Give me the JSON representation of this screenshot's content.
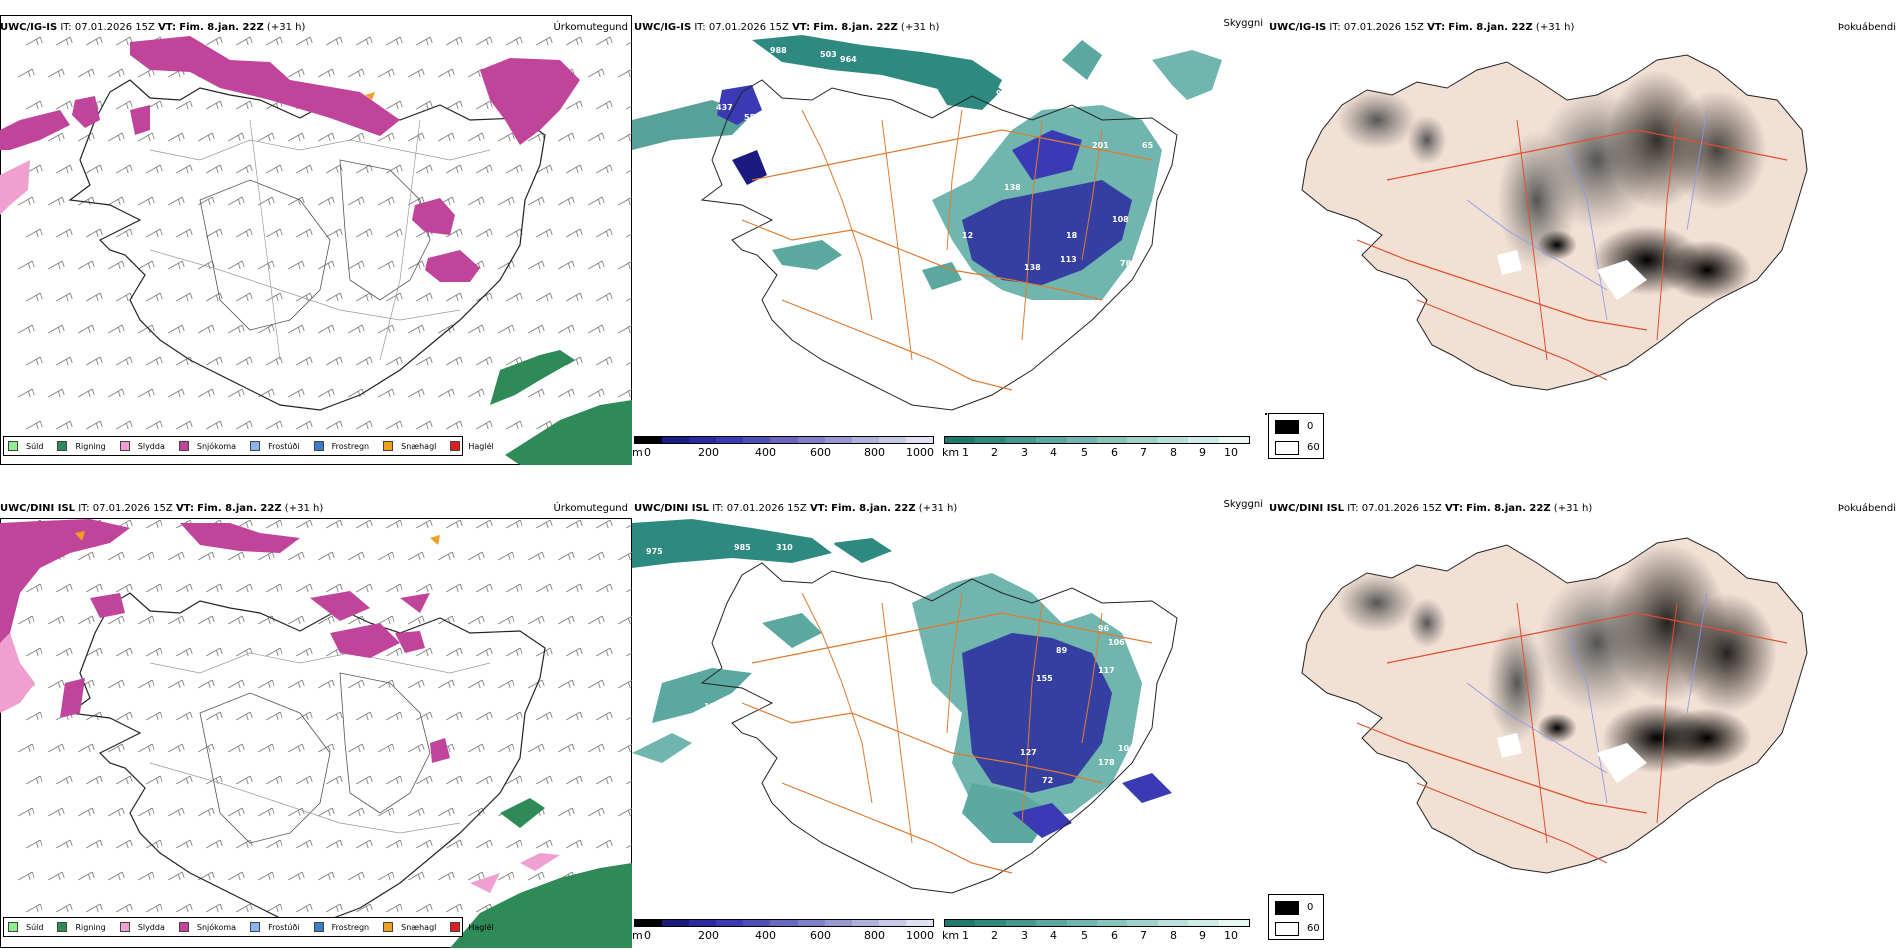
{
  "rows": [
    {
      "model": "UWC/IG-IS",
      "it_label": "IT:",
      "it_value": "07.01.2026 15Z",
      "vt_label": "VT:",
      "vt_value": "Fim. 8.jan. 22Z",
      "lead": "(+31 h)",
      "precip_title": "Úrkomutegund",
      "vis_title": "Skyggni",
      "fog_title": "Þokuábendi",
      "cloud_numbers": [
        "437",
        "55",
        "988",
        "503",
        "964",
        "997",
        "201",
        "65",
        "138",
        "18",
        "113",
        "108",
        "138",
        "78",
        "12",
        "13"
      ],
      "vis_numbers": []
    },
    {
      "model": "UWC/DINI ISL",
      "it_label": "IT:",
      "it_value": "07.01.2026 15Z",
      "vt_label": "VT:",
      "vt_value": "Fim. 8.jan. 22Z",
      "lead": "(+31 h)",
      "precip_title": "Úrkomutegund",
      "vis_title": "Skyggni",
      "fog_title": "Þokuábendi",
      "cloud_numbers": [
        "975",
        "985",
        "310",
        "22",
        "220",
        "127",
        "115",
        "106",
        "96",
        "89",
        "155",
        "117",
        "127",
        "178",
        "106",
        "72"
      ],
      "vis_numbers": []
    }
  ],
  "precip_legend": [
    {
      "label": "Súld",
      "color": "#90ee90"
    },
    {
      "label": "Rigning",
      "color": "#2e8b57"
    },
    {
      "label": "Slydda",
      "color": "#f0a0d0"
    },
    {
      "label": "Snjókoma",
      "color": "#c0449a"
    },
    {
      "label": "Frostúði",
      "color": "#87b7ee"
    },
    {
      "label": "Frostregn",
      "color": "#3a7ec8"
    },
    {
      "label": "Snæhagl",
      "color": "#f0a020"
    },
    {
      "label": "Haglél",
      "color": "#e02020"
    }
  ],
  "ceiling_bar": {
    "unit": "m",
    "ticks": [
      "0",
      "200",
      "400",
      "600",
      "800",
      "1000"
    ],
    "colors": [
      "#000000",
      "#1a1a80",
      "#2a2aa0",
      "#3a3ab4",
      "#5050b8",
      "#6868c0",
      "#8080c8",
      "#9898d0",
      "#b0b0dc",
      "#c8c8e8",
      "#e0e0f4"
    ]
  },
  "vis_bar": {
    "unit": "km",
    "ticks": [
      "1",
      "2",
      "3",
      "4",
      "5",
      "6",
      "7",
      "8",
      "9",
      "10"
    ],
    "colors": [
      "#1c7a70",
      "#2e8a80",
      "#449890",
      "#5aa8a0",
      "#70b6ae",
      "#88c4bc",
      "#a0d2cc",
      "#b8e0da",
      "#d0ece8",
      "#e8f6f4"
    ]
  },
  "fog_legend": [
    {
      "label": "0",
      "color": "#000000"
    },
    {
      "label": "60",
      "color": "#ffffff"
    }
  ]
}
